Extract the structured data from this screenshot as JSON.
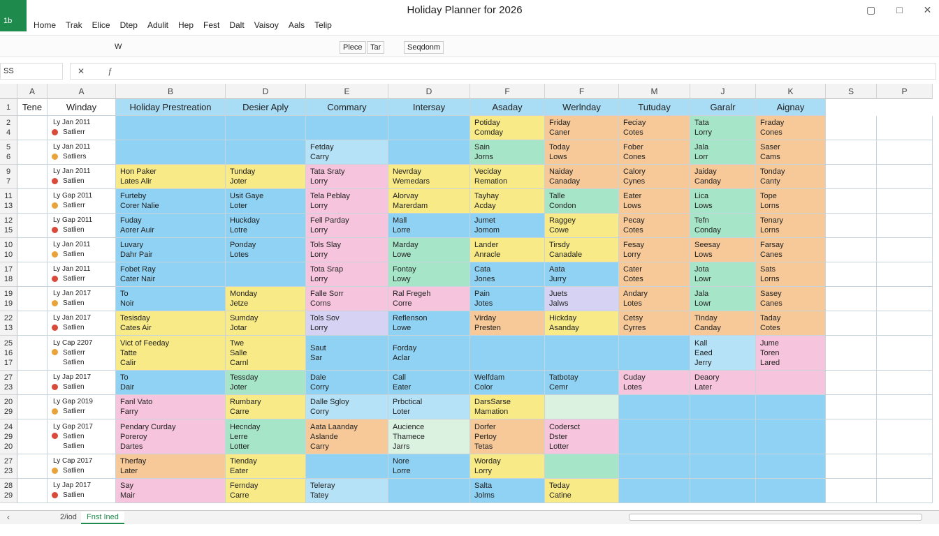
{
  "title_bar": {
    "app_icon": "1b",
    "title": "Holiday Planner for 2026"
  },
  "menu": [
    "Home",
    "Trak",
    "Elice",
    "Dtep",
    "Adulit",
    "Hep",
    "Fest",
    "Dalt",
    "Vaisoy",
    "Aals",
    "Telip"
  ],
  "toolbar": [
    "W",
    "Plece",
    "Tar",
    "Seqdonm"
  ],
  "formula_bar": {
    "name_box": "SS"
  },
  "column_headers": [
    "A",
    "A",
    "B",
    "D",
    "E",
    "D",
    "F",
    "F",
    "M",
    "J",
    "K",
    "S",
    "P"
  ],
  "header_row": {
    "number": "1",
    "cells": [
      "Tene",
      "Winday",
      "Holiday Prestreation",
      "Desier Aply",
      "Commary",
      "Intersay",
      "Asaday",
      "Werlnday",
      "Tutuday",
      "Garalr",
      "Aignay"
    ]
  },
  "rows": [
    {
      "numbers": [
        "2",
        "4"
      ],
      "date": [
        "Ly Jan 2011",
        "Satlierr"
      ],
      "cells": [
        {
          "lines": [],
          "color": "#8fd2f3"
        },
        {
          "lines": [],
          "color": "#8fd2f3"
        },
        {
          "lines": [],
          "color": "#8fd2f3"
        },
        {
          "lines": [],
          "color": "#8fd2f3"
        },
        {
          "lines": [
            "Potiday",
            "Comday"
          ],
          "color": "#f8ea86"
        },
        {
          "lines": [
            "Friday",
            "Caner"
          ],
          "color": "#f7c898"
        },
        {
          "lines": [
            "Feciay",
            "Cotes"
          ],
          "color": "#f7c898"
        },
        {
          "lines": [
            "Tata",
            "Lorry"
          ],
          "color": "#a6e5c7"
        },
        {
          "lines": [
            "Fraday",
            "Cones"
          ],
          "color": "#f7c898"
        }
      ]
    },
    {
      "numbers": [
        "5",
        "6"
      ],
      "date": [
        "Ly Jan 2011",
        "Satliers"
      ],
      "cells": [
        {
          "lines": [],
          "color": "#8fd2f3"
        },
        {
          "lines": [],
          "color": "#8fd2f3"
        },
        {
          "lines": [
            "Fetday",
            "Carry"
          ],
          "color": "#b5e2f6"
        },
        {
          "lines": [],
          "color": "#8fd2f3"
        },
        {
          "lines": [
            "Sain",
            "Jorns"
          ],
          "color": "#a6e5c7"
        },
        {
          "lines": [
            "Today",
            "Lows"
          ],
          "color": "#f7c898"
        },
        {
          "lines": [
            "Fober",
            "Cones"
          ],
          "color": "#f7c898"
        },
        {
          "lines": [
            "Jala",
            "Lorr"
          ],
          "color": "#a6e5c7"
        },
        {
          "lines": [
            "Saser",
            "Cams"
          ],
          "color": "#f7c898"
        }
      ]
    },
    {
      "numbers": [
        "9",
        "7"
      ],
      "date": [
        "Ly Jan 2011",
        "Satlien"
      ],
      "cells": [
        {
          "lines": [
            "Hon Paker",
            "Lates     Alir"
          ],
          "color": "#f8ea86"
        },
        {
          "lines": [
            "Tunday",
            "Joter"
          ],
          "color": "#f8ea86"
        },
        {
          "lines": [
            "Tata Sraty",
            "Lorry"
          ],
          "color": "#f6c4dc"
        },
        {
          "lines": [
            "Nevrday",
            "Wemedars"
          ],
          "color": "#f8ea86"
        },
        {
          "lines": [
            "Veciday",
            "Remation"
          ],
          "color": "#f8ea86"
        },
        {
          "lines": [
            "Naiday",
            "Canaday"
          ],
          "color": "#f7c898"
        },
        {
          "lines": [
            "Calory",
            "Cynes"
          ],
          "color": "#f7c898"
        },
        {
          "lines": [
            "Jaiday",
            "Canday"
          ],
          "color": "#f7c898"
        },
        {
          "lines": [
            "Tonday",
            "Canty"
          ],
          "color": "#f7c898"
        }
      ]
    },
    {
      "numbers": [
        "11",
        "13"
      ],
      "date": [
        "Ly Gap 2011",
        "Satlierr"
      ],
      "cells": [
        {
          "lines": [
            "Furteby",
            "Corer     Nalie"
          ],
          "color": "#8fd2f3"
        },
        {
          "lines": [
            "Usit Gaye",
            "Loter"
          ],
          "color": "#8fd2f3"
        },
        {
          "lines": [
            "Tela Peblay",
            "Lorry"
          ],
          "color": "#f6c4dc"
        },
        {
          "lines": [
            "Alorvay",
            "Marerdam"
          ],
          "color": "#f8ea86"
        },
        {
          "lines": [
            "Tayhay",
            "Acday"
          ],
          "color": "#f8ea86"
        },
        {
          "lines": [
            "Talle",
            "Condon"
          ],
          "color": "#a6e5c7"
        },
        {
          "lines": [
            "Eater",
            "Lows"
          ],
          "color": "#f7c898"
        },
        {
          "lines": [
            "Lica",
            "Lows"
          ],
          "color": "#a6e5c7"
        },
        {
          "lines": [
            "Tope",
            "Lorns"
          ],
          "color": "#f7c898"
        }
      ]
    },
    {
      "numbers": [
        "12",
        "15"
      ],
      "date": [
        "Ly Gap 2011",
        "Satlien"
      ],
      "cells": [
        {
          "lines": [
            "Fuday",
            "Aorer     Auir"
          ],
          "color": "#8fd2f3"
        },
        {
          "lines": [
            "Huckday",
            "Lotre"
          ],
          "color": "#8fd2f3"
        },
        {
          "lines": [
            "Fell Parday",
            "Lorry"
          ],
          "color": "#f6c4dc"
        },
        {
          "lines": [
            "Mall",
            "Lorre"
          ],
          "color": "#8fd2f3"
        },
        {
          "lines": [
            "Jumet",
            "Jomom"
          ],
          "color": "#8fd2f3"
        },
        {
          "lines": [
            "Raggey",
            "Cowe"
          ],
          "color": "#f8ea86"
        },
        {
          "lines": [
            "Pecay",
            "Cotes"
          ],
          "color": "#f7c898"
        },
        {
          "lines": [
            "Tefn",
            "Conday"
          ],
          "color": "#a6e5c7"
        },
        {
          "lines": [
            "Tenary",
            "Lorns"
          ],
          "color": "#f7c898"
        }
      ]
    },
    {
      "numbers": [
        "10",
        "10"
      ],
      "date": [
        "Ly Jan 2011",
        "Satlien"
      ],
      "cells": [
        {
          "lines": [
            "Luvary",
            "Dahr      Pair"
          ],
          "color": "#8fd2f3"
        },
        {
          "lines": [
            "Ponday",
            "Lotes"
          ],
          "color": "#8fd2f3"
        },
        {
          "lines": [
            "Tols Slay",
            "Lorry"
          ],
          "color": "#f6c4dc"
        },
        {
          "lines": [
            "Marday",
            "Lowe"
          ],
          "color": "#a6e5c7"
        },
        {
          "lines": [
            "Lander",
            "Anracle"
          ],
          "color": "#f8ea86"
        },
        {
          "lines": [
            "Tirsdy",
            "Canadale"
          ],
          "color": "#f8ea86"
        },
        {
          "lines": [
            "Fesay",
            "Lorry"
          ],
          "color": "#f7c898"
        },
        {
          "lines": [
            "Seesay",
            "Lows"
          ],
          "color": "#f7c898"
        },
        {
          "lines": [
            "Farsay",
            "Canes"
          ],
          "color": "#f7c898"
        }
      ]
    },
    {
      "numbers": [
        "17",
        "18"
      ],
      "date": [
        "Ly Jan 2011",
        "Satlierr"
      ],
      "cells": [
        {
          "lines": [
            "Fobet Ray",
            "Cater     Nair"
          ],
          "color": "#8fd2f3"
        },
        {
          "lines": [],
          "color": "#8fd2f3"
        },
        {
          "lines": [
            "Tota Srap",
            "Lorry"
          ],
          "color": "#f6c4dc"
        },
        {
          "lines": [
            "Fontay",
            "Lowy"
          ],
          "color": "#a6e5c7"
        },
        {
          "lines": [
            "Cata",
            "Jones"
          ],
          "color": "#8fd2f3"
        },
        {
          "lines": [
            "Aata",
            "Jurry"
          ],
          "color": "#8fd2f3"
        },
        {
          "lines": [
            "Cater",
            "Cotes"
          ],
          "color": "#f7c898"
        },
        {
          "lines": [
            "Jota",
            "Lowr"
          ],
          "color": "#a6e5c7"
        },
        {
          "lines": [
            "Sats",
            "Lorns"
          ],
          "color": "#f7c898"
        }
      ]
    },
    {
      "numbers": [
        "19",
        "19"
      ],
      "date": [
        "Ly Jan 2017",
        "Satlien"
      ],
      "cells": [
        {
          "lines": [
            "To",
            "Noir"
          ],
          "color": "#8fd2f3"
        },
        {
          "lines": [
            "Monday",
            "Jetze"
          ],
          "color": "#f8ea86"
        },
        {
          "lines": [
            "Falle Sorr",
            "Corns"
          ],
          "color": "#f6c4dc"
        },
        {
          "lines": [
            "Ral Fregeh",
            "Corre"
          ],
          "color": "#f6c4dc"
        },
        {
          "lines": [
            "Pain",
            "Jotes"
          ],
          "color": "#8fd2f3"
        },
        {
          "lines": [
            "Juets",
            "Jalws"
          ],
          "color": "#d6d2f4"
        },
        {
          "lines": [
            "Andary",
            "Lotes"
          ],
          "color": "#f7c898"
        },
        {
          "lines": [
            "Jala",
            "Lowr"
          ],
          "color": "#a6e5c7"
        },
        {
          "lines": [
            "Sasey",
            "Canes"
          ],
          "color": "#f7c898"
        }
      ]
    },
    {
      "numbers": [
        "22",
        "13"
      ],
      "date": [
        "Ly Jan 2017",
        "Satlien"
      ],
      "cells": [
        {
          "lines": [
            "Tesisday",
            "Cates     Air"
          ],
          "color": "#f8ea86"
        },
        {
          "lines": [
            "Sumday",
            "Jotar"
          ],
          "color": "#f8ea86"
        },
        {
          "lines": [
            "Tols Sov",
            "Lorry"
          ],
          "color": "#d6d2f4"
        },
        {
          "lines": [
            "Reflenson",
            "Lowe"
          ],
          "color": "#8fd2f3"
        },
        {
          "lines": [
            "Virday",
            "Presten"
          ],
          "color": "#f7c898"
        },
        {
          "lines": [
            "Hickday",
            "Asanday"
          ],
          "color": "#f8ea86"
        },
        {
          "lines": [
            "Cetsy",
            "Cyrres"
          ],
          "color": "#f7c898"
        },
        {
          "lines": [
            "Tinday",
            "Canday"
          ],
          "color": "#f7c898"
        },
        {
          "lines": [
            "Taday",
            "Cotes"
          ],
          "color": "#f7c898"
        }
      ]
    },
    {
      "numbers": [
        "25",
        "16",
        "17"
      ],
      "date": [
        "Ly Cap 2207",
        "Satlierr",
        "Satlien"
      ],
      "cells": [
        {
          "lines": [
            "Vict of Feeday",
            "Tatte",
            "Calir"
          ],
          "color": "#f8ea86"
        },
        {
          "lines": [
            "Twe",
            "Salle",
            "Carnl"
          ],
          "color": "#f8ea86"
        },
        {
          "lines": [
            "Saut",
            "Sar"
          ],
          "color": "#8fd2f3"
        },
        {
          "lines": [
            "Forday",
            "Aclar"
          ],
          "color": "#8fd2f3"
        },
        {
          "lines": [],
          "color": "#8fd2f3"
        },
        {
          "lines": [],
          "color": "#8fd2f3"
        },
        {
          "lines": [],
          "color": "#8fd2f3"
        },
        {
          "lines": [
            "Kall",
            "Eaed",
            "Jerry"
          ],
          "color": "#b5e2f6"
        },
        {
          "lines": [
            "Jume",
            "Toren",
            "Lared"
          ],
          "color": "#f6c4dc"
        }
      ]
    },
    {
      "numbers": [
        "27",
        "23"
      ],
      "date": [
        "Ly Jap 2017",
        "Satlien"
      ],
      "cells": [
        {
          "lines": [
            "To",
            "Dair"
          ],
          "color": "#8fd2f3"
        },
        {
          "lines": [
            "Tessday",
            "Joter"
          ],
          "color": "#a6e5c7"
        },
        {
          "lines": [
            "Dale",
            "Corry"
          ],
          "color": "#8fd2f3"
        },
        {
          "lines": [
            "Call",
            "Eater"
          ],
          "color": "#8fd2f3"
        },
        {
          "lines": [
            "Welfdam",
            "Color"
          ],
          "color": "#8fd2f3"
        },
        {
          "lines": [
            "Tatbotay",
            "Cemr"
          ],
          "color": "#8fd2f3"
        },
        {
          "lines": [
            "Cuday",
            "Lotes"
          ],
          "color": "#f6c4dc"
        },
        {
          "lines": [
            "Deaory",
            "Later"
          ],
          "color": "#f6c4dc"
        },
        {
          "lines": [],
          "color": "#f6c4dc"
        }
      ]
    },
    {
      "numbers": [
        "20",
        "29"
      ],
      "date": [
        "Ly Gap 2019",
        "Satlierr"
      ],
      "cells": [
        {
          "lines": [
            "Fanl Vato",
            "Farry"
          ],
          "color": "#f6c4dc"
        },
        {
          "lines": [
            "Rumbary",
            "Carre"
          ],
          "color": "#f8ea86"
        },
        {
          "lines": [
            "Dalle Sgloy",
            "Corry"
          ],
          "color": "#b5e2f6"
        },
        {
          "lines": [
            "Prbctical",
            "Loter"
          ],
          "color": "#b5e2f6"
        },
        {
          "lines": [
            "DarsSarse",
            "Mamation"
          ],
          "color": "#f8ea86"
        },
        {
          "lines": [],
          "color": "#dbf2e1"
        },
        {
          "lines": [],
          "color": "#8fd2f3"
        },
        {
          "lines": [],
          "color": "#8fd2f3"
        },
        {
          "lines": [],
          "color": "#8fd2f3"
        }
      ]
    },
    {
      "numbers": [
        "24",
        "29",
        "20"
      ],
      "date": [
        "Ly Gap 2017",
        "Satlien",
        "Satlien"
      ],
      "cells": [
        {
          "lines": [
            "Pendary Curday",
            "Poreroy",
            "Dartes"
          ],
          "color": "#f6c4dc"
        },
        {
          "lines": [
            "Hecnday",
            "Lerre",
            "Lotter"
          ],
          "color": "#a6e5c7"
        },
        {
          "lines": [
            "Aata Laanday",
            "Aslande",
            "Carry"
          ],
          "color": "#f7c898"
        },
        {
          "lines": [
            "Aucience",
            "Thamece",
            "Jarrs"
          ],
          "color": "#dbf2e1"
        },
        {
          "lines": [
            "Dorfer",
            "Pertoy",
            "Tetas"
          ],
          "color": "#f7c898"
        },
        {
          "lines": [
            "Codersct",
            "Dster",
            "Lotter"
          ],
          "color": "#f6c4dc"
        },
        {
          "lines": [],
          "color": "#8fd2f3"
        },
        {
          "lines": [],
          "color": "#8fd2f3"
        },
        {
          "lines": [],
          "color": "#8fd2f3"
        }
      ]
    },
    {
      "numbers": [
        "27",
        "23"
      ],
      "date": [
        "Ly Cap 2017",
        "Satlien"
      ],
      "cells": [
        {
          "lines": [
            "Therfay",
            "Later"
          ],
          "color": "#f7c898"
        },
        {
          "lines": [
            "Tienday",
            "Eater"
          ],
          "color": "#f8ea86"
        },
        {
          "lines": [],
          "color": "#8fd2f3"
        },
        {
          "lines": [
            "Nore",
            "Lorre"
          ],
          "color": "#8fd2f3"
        },
        {
          "lines": [
            "Worday",
            "Lorry"
          ],
          "color": "#f8ea86"
        },
        {
          "lines": [],
          "color": "#a6e5c7"
        },
        {
          "lines": [],
          "color": "#8fd2f3"
        },
        {
          "lines": [],
          "color": "#8fd2f3"
        },
        {
          "lines": [],
          "color": "#8fd2f3"
        }
      ]
    },
    {
      "numbers": [
        "28",
        "29"
      ],
      "date": [
        "Ly Jap 2017",
        "Satlien"
      ],
      "cells": [
        {
          "lines": [
            "Say",
            "Mair"
          ],
          "color": "#f6c4dc"
        },
        {
          "lines": [
            "Fernday",
            "Carre"
          ],
          "color": "#f8ea86"
        },
        {
          "lines": [
            "Teleray",
            "Tatey"
          ],
          "color": "#b5e2f6"
        },
        {
          "lines": [],
          "color": "#8fd2f3"
        },
        {
          "lines": [
            "Salta",
            "Jolms"
          ],
          "color": "#8fd2f3"
        },
        {
          "lines": [
            "Teday",
            "Catine"
          ],
          "color": "#f8ea86"
        },
        {
          "lines": [],
          "color": "#8fd2f3"
        },
        {
          "lines": [],
          "color": "#8fd2f3"
        },
        {
          "lines": [],
          "color": "#8fd2f3"
        }
      ]
    }
  ],
  "sheet_tabs": [
    "2/iod",
    "Fnst Ined"
  ]
}
